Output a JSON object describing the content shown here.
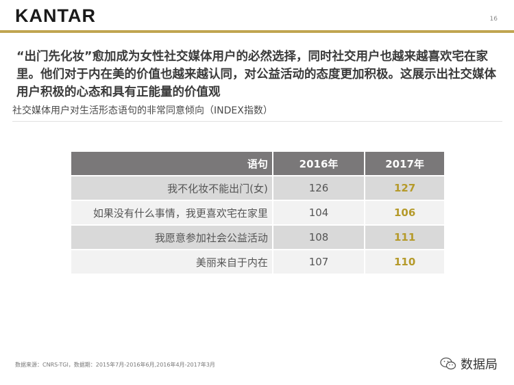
{
  "header": {
    "logo_text": "KANTAR",
    "page_number": "16",
    "accent_color": "#b89a3c"
  },
  "headline": "“出门先化妆”愈加成为女性社交媒体用户的必然选择，同时社交用户也越来越喜欢宅在家里。他们对于内在美的价值也越来越认同，对公益活动的态度更加积极。这展示出社交媒体用户积极的心态和具有正能量的价值观",
  "subtitle": "社交媒体用户对生活形态语句的非常同意倾向（INDEX指数）",
  "table": {
    "headers": [
      "语句",
      "2016年",
      "2017年"
    ],
    "rows": [
      {
        "statement": "我不化妆不能出门(女)",
        "v2016": "126",
        "v2017": "127"
      },
      {
        "statement": "如果没有什么事情，我更喜欢宅在家里",
        "v2016": "104",
        "v2017": "106"
      },
      {
        "statement": "我愿意参加社会公益活动",
        "v2016": "108",
        "v2017": "111"
      },
      {
        "statement": "美丽来自于内在",
        "v2016": "107",
        "v2017": "110"
      }
    ]
  },
  "footer": {
    "source": "数据来源：CNRS-TGI，数据期：2015年7月-2016年6月,2016年4月-2017年3月",
    "brand_text": "数据局",
    "brand_icon": "wechat-icon"
  }
}
